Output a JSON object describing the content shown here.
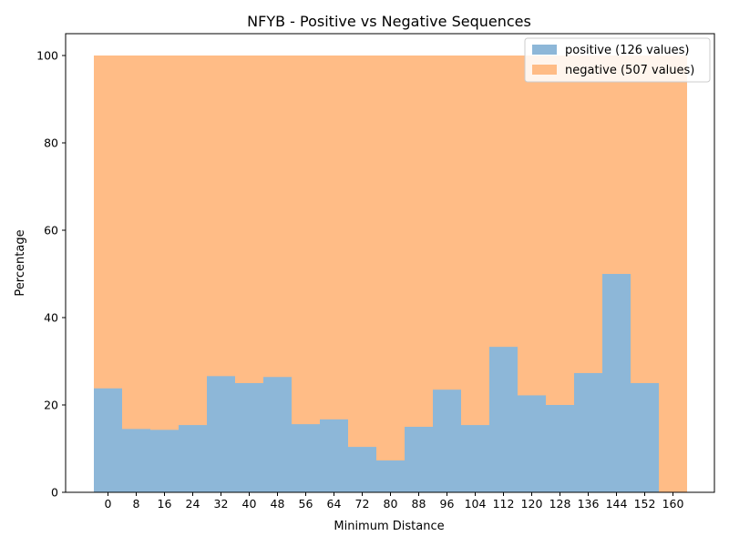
{
  "chart_data": {
    "type": "bar",
    "title": "NFYB - Positive vs Negative Sequences",
    "xlabel": "Minimum Distance",
    "ylabel": "Percentage",
    "x_ticks": [
      "0",
      "8",
      "16",
      "24",
      "32",
      "40",
      "48",
      "56",
      "64",
      "72",
      "80",
      "88",
      "96",
      "104",
      "112",
      "120",
      "128",
      "136",
      "144",
      "152",
      "160"
    ],
    "y_ticks": [
      "0",
      "20",
      "40",
      "60",
      "80",
      "100"
    ],
    "ylim": [
      0,
      105
    ],
    "grid": false,
    "legend_position": "top-right",
    "series": [
      {
        "name": "positive (126 values)",
        "color": "#8db7d8",
        "values": [
          23.8,
          14.5,
          14.3,
          15.4,
          26.6,
          25.0,
          26.4,
          15.6,
          16.7,
          10.4,
          7.3,
          15.0,
          23.5,
          15.4,
          33.3,
          22.2,
          20.0,
          27.3,
          50.0,
          25.0,
          0
        ]
      },
      {
        "name": "negative (507 values)",
        "color": "#ffbc86",
        "values": [
          100,
          100,
          100,
          100,
          100,
          100,
          100,
          100,
          100,
          100,
          100,
          100,
          100,
          100,
          100,
          100,
          100,
          100,
          100,
          100,
          100
        ]
      }
    ]
  }
}
